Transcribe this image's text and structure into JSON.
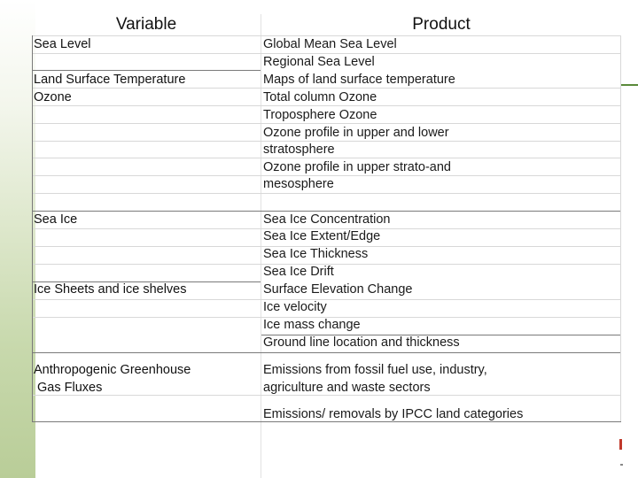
{
  "headers": {
    "variable": "Variable",
    "product": "Product"
  },
  "variables": [
    {
      "label": "Sea Level"
    },
    {
      "label": "Land Surface Temperature"
    },
    {
      "label": "Ozone"
    },
    {
      "label": "Sea Ice"
    },
    {
      "label": "Ice Sheets and ice shelves"
    },
    {
      "label": "Anthropogenic Greenhouse",
      "label2": " Gas Fluxes"
    }
  ],
  "products": [
    "Global Mean Sea Level",
    "Regional Sea Level",
    "Maps of land surface temperature",
    "Total column Ozone",
    "Troposphere Ozone",
    "Ozone profile in upper and lower",
    "stratosphere",
    "Ozone profile in upper strato-and",
    "mesosphere",
    "Sea Ice Concentration",
    "Sea Ice Extent/Edge",
    "Sea Ice Thickness",
    "Sea Ice Drift",
    "Surface Elevation Change",
    "Ice velocity",
    "Ice mass change",
    "Ground line location and thickness",
    "Emissions from fossil fuel use, industry,",
    "agriculture and waste sectors",
    "Emissions/ removals by IPCC land categories"
  ]
}
